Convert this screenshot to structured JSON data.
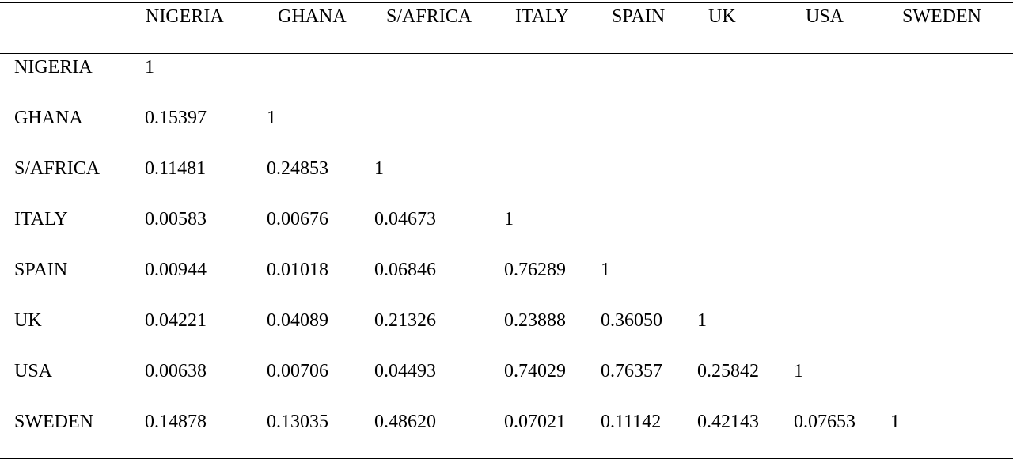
{
  "columns": [
    "NIGERIA",
    "GHANA",
    "S/AFRICA",
    "ITALY",
    "SPAIN",
    "UK",
    "USA",
    "SWEDEN"
  ],
  "rows": [
    {
      "label": "NIGERIA",
      "values": [
        "1"
      ]
    },
    {
      "label": "GHANA",
      "values": [
        "0.15397",
        "1"
      ]
    },
    {
      "label": "S/AFRICA",
      "values": [
        "0.11481",
        "0.24853",
        "1"
      ]
    },
    {
      "label": "ITALY",
      "values": [
        "0.00583",
        "0.00676",
        "0.04673",
        "1"
      ]
    },
    {
      "label": "SPAIN",
      "values": [
        "0.00944",
        "0.01018",
        "0.06846",
        "0.76289",
        "1"
      ]
    },
    {
      "label": "UK",
      "values": [
        "0.04221",
        "0.04089",
        "0.21326",
        "0.23888",
        "0.36050",
        "1"
      ]
    },
    {
      "label": "USA",
      "values": [
        "0.00638",
        "0.00706",
        "0.04493",
        "0.74029",
        "0.76357",
        "0.25842",
        "1"
      ]
    },
    {
      "label": "SWEDEN",
      "values": [
        "0.14878",
        "0.13035",
        "0.48620",
        "0.07021",
        "0.11142",
        "0.42143",
        "0.07653",
        "1"
      ]
    }
  ]
}
